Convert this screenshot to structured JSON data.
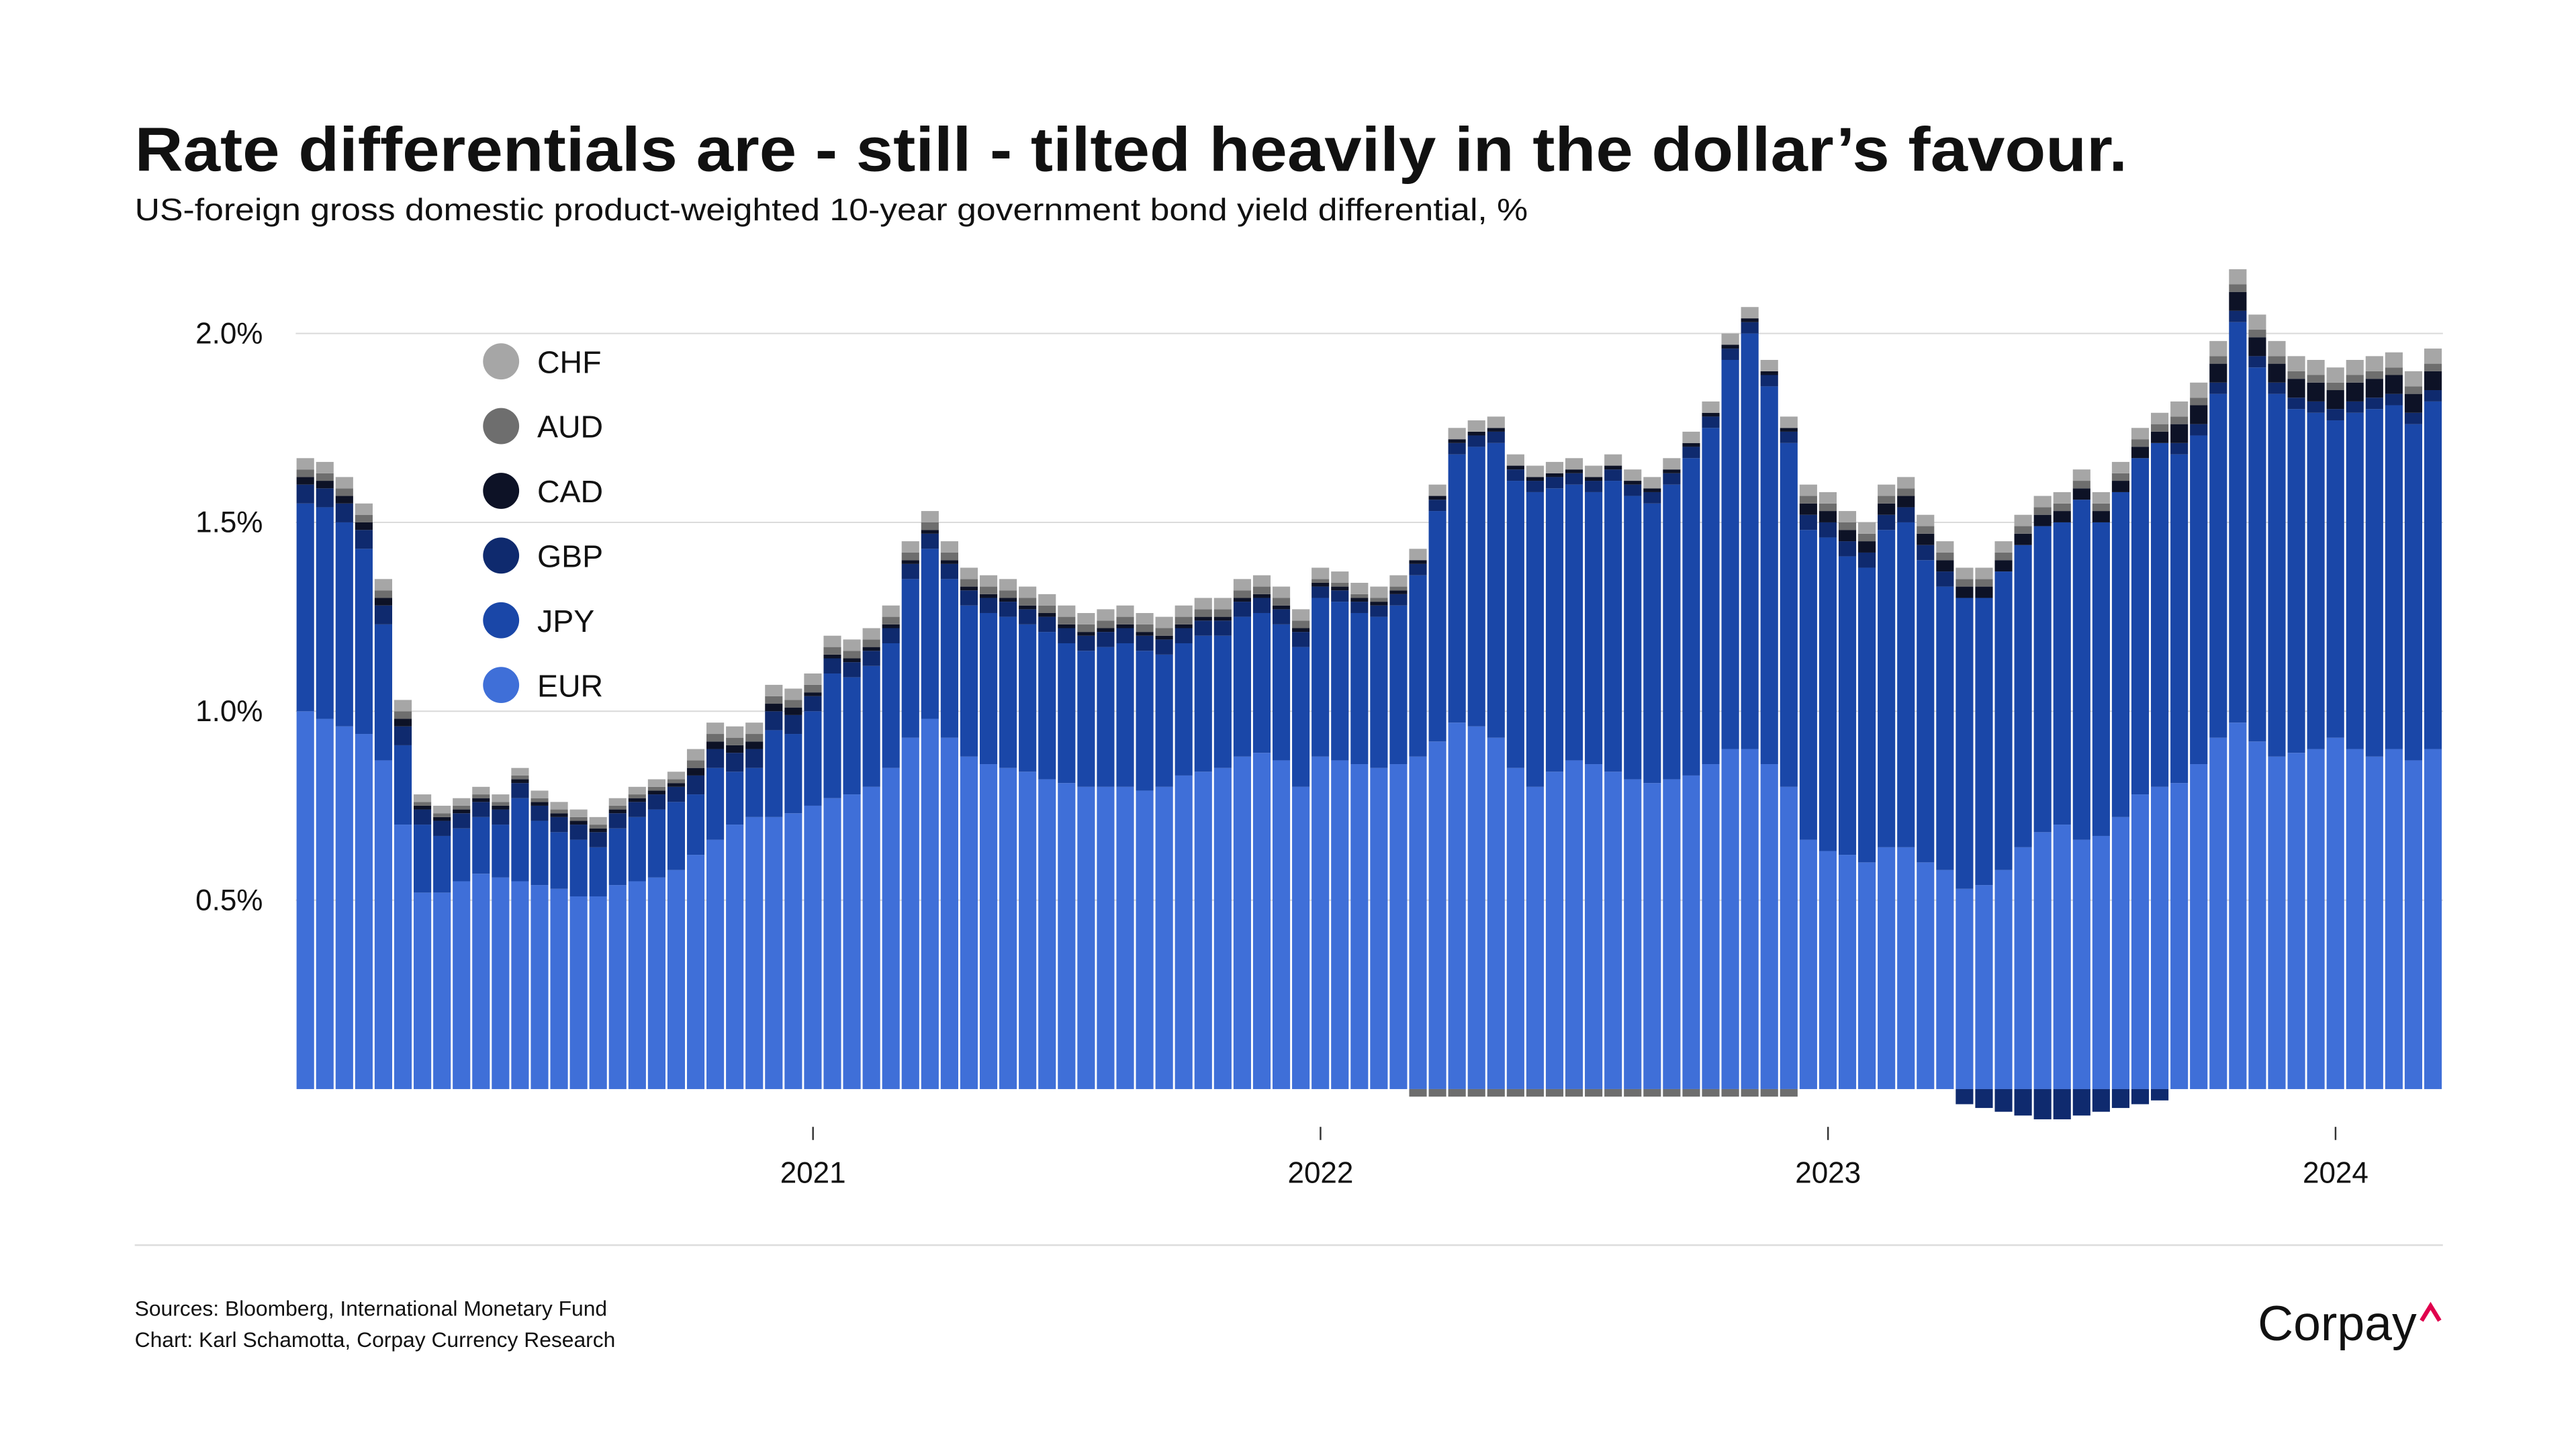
{
  "chart_data": {
    "type": "bar",
    "stacked": true,
    "title": "Rate differentials are - still - tilted heavily in the dollar’s favour.",
    "subtitle": "US-foreign gross domestic product-weighted 10-year government bond yield differential, %",
    "sources": [
      "Sources: Bloomberg, International Monetary Fund",
      "Chart: Karl Schamotta, Corpay Currency Research"
    ],
    "brand": "Corpay",
    "legend": "upper left",
    "grid": true,
    "ylim": [
      -0.1,
      2.2
    ],
    "yticks": [
      {
        "value": 0.5,
        "label": "0.5%"
      },
      {
        "value": 1.0,
        "label": "1.0%"
      },
      {
        "value": 1.5,
        "label": "1.5%"
      },
      {
        "value": 2.0,
        "label": "2.0%"
      }
    ],
    "categories": [
      null,
      null,
      null,
      null,
      null,
      null,
      null,
      null,
      null,
      null,
      null,
      null,
      null,
      null,
      null,
      null,
      null,
      null,
      null,
      null,
      null,
      null,
      null,
      null,
      null,
      null,
      "2021",
      null,
      null,
      null,
      null,
      null,
      null,
      null,
      null,
      null,
      null,
      null,
      null,
      null,
      null,
      null,
      null,
      null,
      null,
      null,
      null,
      null,
      null,
      null,
      null,
      null,
      "2022",
      null,
      null,
      null,
      null,
      null,
      null,
      null,
      null,
      null,
      null,
      null,
      null,
      null,
      null,
      null,
      null,
      null,
      null,
      null,
      null,
      null,
      null,
      null,
      null,
      null,
      "2023",
      null,
      null,
      null,
      null,
      null,
      null,
      null,
      null,
      null,
      null,
      null,
      null,
      null,
      null,
      null,
      null,
      null,
      null,
      null,
      null,
      null,
      null,
      null,
      null,
      null,
      "2024",
      null,
      null,
      null,
      null,
      null
    ],
    "series": [
      {
        "name": "EUR",
        "color": "#3f6fd8",
        "values": [
          1.0,
          0.98,
          0.96,
          0.94,
          0.87,
          0.7,
          0.52,
          0.52,
          0.55,
          0.57,
          0.56,
          0.55,
          0.54,
          0.53,
          0.51,
          0.51,
          0.54,
          0.55,
          0.56,
          0.58,
          0.62,
          0.66,
          0.7,
          0.72,
          0.72,
          0.73,
          0.75,
          0.77,
          0.78,
          0.8,
          0.85,
          0.93,
          0.98,
          0.93,
          0.88,
          0.86,
          0.85,
          0.84,
          0.82,
          0.81,
          0.8,
          0.8,
          0.8,
          0.79,
          0.8,
          0.83,
          0.84,
          0.85,
          0.88,
          0.89,
          0.87,
          0.8,
          0.88,
          0.87,
          0.86,
          0.85,
          0.86,
          0.88,
          0.92,
          0.97,
          0.96,
          0.93,
          0.85,
          0.8,
          0.84,
          0.87,
          0.86,
          0.84,
          0.82,
          0.81,
          0.82,
          0.83,
          0.86,
          0.9,
          0.9,
          0.86,
          0.8,
          0.66,
          0.63,
          0.62,
          0.6,
          0.64,
          0.64,
          0.6,
          0.58,
          0.53,
          0.54,
          0.58,
          0.64,
          0.68,
          0.7,
          0.66,
          0.67,
          0.72,
          0.78,
          0.8,
          0.81,
          0.86,
          0.93,
          0.97,
          0.92,
          0.88,
          0.89,
          0.9,
          0.93,
          0.9,
          0.88,
          0.9,
          0.87,
          0.9
        ]
      },
      {
        "name": "JPY",
        "color": "#1a47a8",
        "values": [
          0.55,
          0.56,
          0.54,
          0.49,
          0.36,
          0.21,
          0.18,
          0.15,
          0.14,
          0.15,
          0.14,
          0.22,
          0.17,
          0.15,
          0.15,
          0.13,
          0.15,
          0.17,
          0.18,
          0.18,
          0.16,
          0.19,
          0.14,
          0.13,
          0.23,
          0.21,
          0.25,
          0.33,
          0.31,
          0.32,
          0.33,
          0.42,
          0.45,
          0.42,
          0.4,
          0.4,
          0.4,
          0.39,
          0.39,
          0.37,
          0.36,
          0.37,
          0.38,
          0.37,
          0.35,
          0.35,
          0.36,
          0.35,
          0.37,
          0.37,
          0.36,
          0.37,
          0.42,
          0.42,
          0.4,
          0.4,
          0.42,
          0.48,
          0.61,
          0.71,
          0.74,
          0.78,
          0.76,
          0.78,
          0.75,
          0.73,
          0.72,
          0.77,
          0.75,
          0.74,
          0.78,
          0.84,
          0.89,
          1.03,
          1.1,
          1.0,
          0.91,
          0.82,
          0.83,
          0.79,
          0.78,
          0.84,
          0.86,
          0.8,
          0.75,
          0.77,
          0.76,
          0.79,
          0.8,
          0.81,
          0.8,
          0.9,
          0.83,
          0.86,
          0.89,
          0.91,
          0.87,
          0.87,
          0.91,
          1.06,
          0.99,
          0.96,
          0.91,
          0.89,
          0.84,
          0.89,
          0.92,
          0.91,
          0.89,
          0.92
        ]
      },
      {
        "name": "GBP",
        "color": "#0f2a6e",
        "values": [
          0.05,
          0.05,
          0.05,
          0.05,
          0.05,
          0.05,
          0.04,
          0.04,
          0.04,
          0.04,
          0.04,
          0.04,
          0.04,
          0.04,
          0.04,
          0.04,
          0.04,
          0.04,
          0.04,
          0.04,
          0.05,
          0.05,
          0.05,
          0.05,
          0.05,
          0.05,
          0.04,
          0.04,
          0.04,
          0.04,
          0.04,
          0.04,
          0.04,
          0.04,
          0.04,
          0.04,
          0.04,
          0.04,
          0.04,
          0.04,
          0.04,
          0.04,
          0.04,
          0.04,
          0.04,
          0.04,
          0.04,
          0.04,
          0.04,
          0.04,
          0.04,
          0.04,
          0.03,
          0.03,
          0.03,
          0.03,
          0.03,
          0.03,
          0.03,
          0.03,
          0.03,
          0.03,
          0.03,
          0.03,
          0.03,
          0.03,
          0.03,
          0.03,
          0.03,
          0.03,
          0.03,
          0.03,
          0.03,
          0.03,
          0.03,
          0.03,
          0.03,
          0.04,
          0.04,
          0.04,
          0.04,
          0.04,
          0.04,
          0.04,
          0.04,
          -0.04,
          -0.05,
          -0.06,
          -0.07,
          -0.08,
          -0.08,
          -0.07,
          -0.06,
          -0.05,
          -0.04,
          -0.03,
          0.03,
          0.03,
          0.03,
          0.03,
          0.03,
          0.03,
          0.03,
          0.03,
          0.03,
          0.03,
          0.03,
          0.03,
          0.03,
          0.03
        ]
      },
      {
        "name": "CAD",
        "color": "#0d1226",
        "values": [
          0.02,
          0.02,
          0.02,
          0.02,
          0.02,
          0.02,
          0.01,
          0.01,
          0.01,
          0.01,
          0.01,
          0.01,
          0.01,
          0.01,
          0.01,
          0.01,
          0.01,
          0.01,
          0.01,
          0.01,
          0.02,
          0.02,
          0.02,
          0.02,
          0.02,
          0.02,
          0.01,
          0.01,
          0.01,
          0.01,
          0.01,
          0.01,
          0.01,
          0.01,
          0.01,
          0.01,
          0.01,
          0.01,
          0.01,
          0.01,
          0.01,
          0.01,
          0.01,
          0.01,
          0.01,
          0.01,
          0.01,
          0.01,
          0.01,
          0.01,
          0.01,
          0.01,
          0.01,
          0.01,
          0.01,
          0.01,
          0.01,
          0.01,
          0.01,
          0.01,
          0.01,
          0.01,
          0.01,
          0.01,
          0.01,
          0.01,
          0.01,
          0.01,
          0.01,
          0.01,
          0.01,
          0.01,
          0.01,
          0.01,
          0.01,
          0.01,
          0.01,
          0.03,
          0.03,
          0.03,
          0.03,
          0.03,
          0.03,
          0.03,
          0.03,
          0.03,
          0.03,
          0.03,
          0.03,
          0.03,
          0.03,
          0.03,
          0.03,
          0.03,
          0.03,
          0.03,
          0.05,
          0.05,
          0.05,
          0.05,
          0.05,
          0.05,
          0.05,
          0.05,
          0.05,
          0.05,
          0.05,
          0.05,
          0.05,
          0.05
        ]
      },
      {
        "name": "AUD",
        "color": "#6e6e6e",
        "values": [
          0.02,
          0.02,
          0.02,
          0.02,
          0.02,
          0.02,
          0.01,
          0.01,
          0.01,
          0.01,
          0.01,
          0.01,
          0.01,
          0.01,
          0.01,
          0.01,
          0.01,
          0.01,
          0.01,
          0.01,
          0.02,
          0.02,
          0.02,
          0.02,
          0.02,
          0.02,
          0.02,
          0.02,
          0.02,
          0.02,
          0.02,
          0.02,
          0.02,
          0.02,
          0.02,
          0.02,
          0.02,
          0.02,
          0.02,
          0.02,
          0.02,
          0.02,
          0.02,
          0.02,
          0.02,
          0.02,
          0.02,
          0.02,
          0.02,
          0.02,
          0.02,
          0.02,
          0.01,
          0.01,
          0.01,
          0.01,
          0.01,
          -0.02,
          -0.02,
          -0.02,
          -0.02,
          -0.02,
          -0.02,
          -0.02,
          -0.02,
          -0.02,
          -0.02,
          -0.02,
          -0.02,
          -0.02,
          -0.02,
          -0.02,
          -0.02,
          -0.02,
          -0.02,
          -0.02,
          -0.02,
          0.02,
          0.02,
          0.02,
          0.02,
          0.02,
          0.02,
          0.02,
          0.02,
          0.02,
          0.02,
          0.02,
          0.02,
          0.02,
          0.02,
          0.02,
          0.02,
          0.02,
          0.02,
          0.02,
          0.02,
          0.02,
          0.02,
          0.02,
          0.02,
          0.02,
          0.02,
          0.02,
          0.02,
          0.02,
          0.02,
          0.02,
          0.02,
          0.02
        ]
      },
      {
        "name": "CHF",
        "color": "#a6a6a6",
        "values": [
          0.03,
          0.03,
          0.03,
          0.03,
          0.03,
          0.03,
          0.02,
          0.02,
          0.02,
          0.02,
          0.02,
          0.02,
          0.02,
          0.02,
          0.02,
          0.02,
          0.02,
          0.02,
          0.02,
          0.02,
          0.03,
          0.03,
          0.03,
          0.03,
          0.03,
          0.03,
          0.03,
          0.03,
          0.03,
          0.03,
          0.03,
          0.03,
          0.03,
          0.03,
          0.03,
          0.03,
          0.03,
          0.03,
          0.03,
          0.03,
          0.03,
          0.03,
          0.03,
          0.03,
          0.03,
          0.03,
          0.03,
          0.03,
          0.03,
          0.03,
          0.03,
          0.03,
          0.03,
          0.03,
          0.03,
          0.03,
          0.03,
          0.03,
          0.03,
          0.03,
          0.03,
          0.03,
          0.03,
          0.03,
          0.03,
          0.03,
          0.03,
          0.03,
          0.03,
          0.03,
          0.03,
          0.03,
          0.03,
          0.03,
          0.03,
          0.03,
          0.03,
          0.03,
          0.03,
          0.03,
          0.03,
          0.03,
          0.03,
          0.03,
          0.03,
          0.03,
          0.03,
          0.03,
          0.03,
          0.03,
          0.03,
          0.03,
          0.03,
          0.03,
          0.03,
          0.03,
          0.04,
          0.04,
          0.04,
          0.04,
          0.04,
          0.04,
          0.04,
          0.04,
          0.04,
          0.04,
          0.04,
          0.04,
          0.04,
          0.04
        ]
      }
    ]
  }
}
